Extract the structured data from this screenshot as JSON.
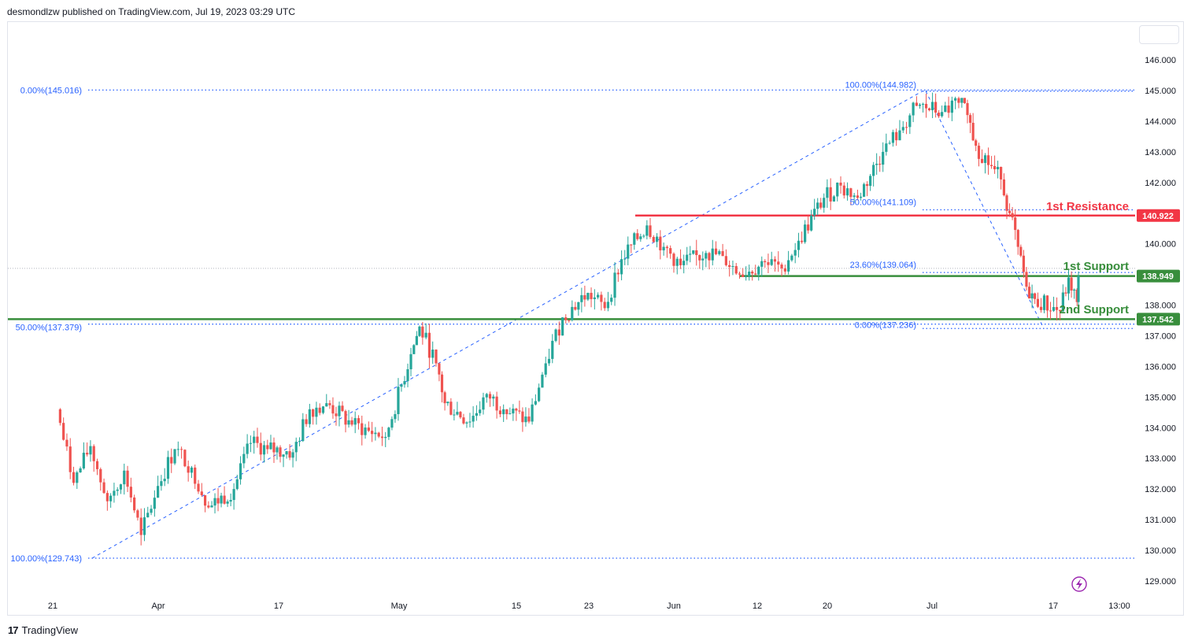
{
  "header": {
    "publisher_line": "desmondlzw published on TradingView.com, Jul 19, 2023 03:29 UTC"
  },
  "footer": {
    "brand": "TradingView",
    "brand_logo": "17"
  },
  "colors": {
    "bull": "#26a69a",
    "bear": "#ef5350",
    "fib": "#2962ff",
    "resistance": "#f23645",
    "support": "#388e3c",
    "lightning": "#9c27b0"
  },
  "icons": {
    "lightning": "lightning-icon",
    "logo": "tradingview-logo-icon"
  },
  "chart_data": {
    "type": "candlestick",
    "instrument": "",
    "price_axis": {
      "ticks": [
        "146.000",
        "145.000",
        "144.000",
        "143.000",
        "142.000",
        "141.000",
        "140.000",
        "139.000",
        "138.000",
        "137.000",
        "136.000",
        "135.000",
        "134.000",
        "133.000",
        "132.000",
        "131.000",
        "130.000",
        "129.000"
      ],
      "range": [
        128.6,
        146.9
      ]
    },
    "time_axis": {
      "ticks": [
        "21",
        "Apr",
        "17",
        "May",
        "15",
        "23",
        "Jun",
        "12",
        "20",
        "Jul",
        "17",
        "13:00"
      ]
    },
    "candles_ohlc_approx": [
      {
        "date": "2023-03-20",
        "o": 134.6,
        "h": 134.9,
        "l": 131.5,
        "c": 132.2
      },
      {
        "date": "2023-03-22",
        "o": 132.2,
        "h": 133.9,
        "l": 131.3,
        "c": 133.5
      },
      {
        "date": "2023-03-24",
        "o": 133.4,
        "h": 133.7,
        "l": 130.9,
        "c": 131.6
      },
      {
        "date": "2023-03-26",
        "o": 131.6,
        "h": 133.1,
        "l": 130.3,
        "c": 132.7
      },
      {
        "date": "2023-03-28",
        "o": 132.6,
        "h": 132.8,
        "l": 129.9,
        "c": 130.5
      },
      {
        "date": "2023-03-30",
        "o": 130.5,
        "h": 132.7,
        "l": 130.3,
        "c": 132.2
      },
      {
        "date": "2023-04-01",
        "o": 132.1,
        "h": 133.8,
        "l": 131.3,
        "c": 133.3
      },
      {
        "date": "2023-04-03",
        "o": 133.3,
        "h": 133.9,
        "l": 132.4,
        "c": 132.7
      },
      {
        "date": "2023-04-05",
        "o": 132.7,
        "h": 133.6,
        "l": 130.8,
        "c": 131.3
      },
      {
        "date": "2023-04-07",
        "o": 131.4,
        "h": 132.4,
        "l": 130.9,
        "c": 132.0
      },
      {
        "date": "2023-04-10",
        "o": 132.0,
        "h": 133.8,
        "l": 131.9,
        "c": 133.5
      },
      {
        "date": "2023-04-12",
        "o": 133.5,
        "h": 134.0,
        "l": 132.6,
        "c": 133.4
      },
      {
        "date": "2023-04-14",
        "o": 133.3,
        "h": 133.9,
        "l": 132.1,
        "c": 133.2
      },
      {
        "date": "2023-04-17",
        "o": 133.2,
        "h": 134.7,
        "l": 132.9,
        "c": 134.5
      },
      {
        "date": "2023-04-19",
        "o": 134.6,
        "h": 135.1,
        "l": 134.3,
        "c": 134.8
      },
      {
        "date": "2023-04-21",
        "o": 134.8,
        "h": 135.1,
        "l": 134.1,
        "c": 134.1
      },
      {
        "date": "2023-04-24",
        "o": 134.1,
        "h": 134.6,
        "l": 133.4,
        "c": 133.9
      },
      {
        "date": "2023-04-26",
        "o": 133.9,
        "h": 134.1,
        "l": 133.0,
        "c": 133.7
      },
      {
        "date": "2023-04-28",
        "o": 133.7,
        "h": 136.7,
        "l": 133.6,
        "c": 136.4
      },
      {
        "date": "2023-05-01",
        "o": 136.4,
        "h": 137.8,
        "l": 136.2,
        "c": 137.4
      },
      {
        "date": "2023-05-02",
        "o": 137.3,
        "h": 137.6,
        "l": 135.7,
        "c": 136.2
      },
      {
        "date": "2023-05-04",
        "o": 136.1,
        "h": 136.3,
        "l": 134.6,
        "c": 134.8
      },
      {
        "date": "2023-05-05",
        "o": 134.8,
        "h": 135.1,
        "l": 133.5,
        "c": 134.1
      },
      {
        "date": "2023-05-08",
        "o": 134.2,
        "h": 135.3,
        "l": 134.0,
        "c": 135.1
      },
      {
        "date": "2023-05-10",
        "o": 135.1,
        "h": 135.4,
        "l": 134.2,
        "c": 134.6
      },
      {
        "date": "2023-05-12",
        "o": 134.6,
        "h": 135.2,
        "l": 133.8,
        "c": 134.2
      },
      {
        "date": "2023-05-15",
        "o": 134.2,
        "h": 136.3,
        "l": 134.1,
        "c": 136.1
      },
      {
        "date": "2023-05-17",
        "o": 136.1,
        "h": 137.7,
        "l": 136.0,
        "c": 137.6
      },
      {
        "date": "2023-05-19",
        "o": 137.6,
        "h": 138.8,
        "l": 137.4,
        "c": 138.4
      },
      {
        "date": "2023-05-22",
        "o": 138.4,
        "h": 138.9,
        "l": 137.5,
        "c": 137.9
      },
      {
        "date": "2023-05-24",
        "o": 137.9,
        "h": 139.7,
        "l": 137.8,
        "c": 139.5
      },
      {
        "date": "2023-05-26",
        "o": 139.5,
        "h": 140.9,
        "l": 139.3,
        "c": 140.6
      },
      {
        "date": "2023-05-29",
        "o": 140.6,
        "h": 140.9,
        "l": 139.6,
        "c": 139.9
      },
      {
        "date": "2023-05-31",
        "o": 139.9,
        "h": 140.2,
        "l": 138.9,
        "c": 139.3
      },
      {
        "date": "2023-06-02",
        "o": 139.3,
        "h": 139.9,
        "l": 138.4,
        "c": 139.7
      },
      {
        "date": "2023-06-05",
        "o": 139.7,
        "h": 140.3,
        "l": 139.0,
        "c": 139.6
      },
      {
        "date": "2023-06-07",
        "o": 139.6,
        "h": 140.1,
        "l": 138.8,
        "c": 139.0
      },
      {
        "date": "2023-06-09",
        "o": 139.0,
        "h": 139.6,
        "l": 138.8,
        "c": 139.4
      },
      {
        "date": "2023-06-12",
        "o": 139.4,
        "h": 139.8,
        "l": 138.9,
        "c": 139.2
      },
      {
        "date": "2023-06-14",
        "o": 139.2,
        "h": 140.3,
        "l": 139.0,
        "c": 140.1
      },
      {
        "date": "2023-06-16",
        "o": 140.1,
        "h": 141.6,
        "l": 140.0,
        "c": 141.5
      },
      {
        "date": "2023-06-19",
        "o": 141.5,
        "h": 142.2,
        "l": 141.1,
        "c": 141.9
      },
      {
        "date": "2023-06-21",
        "o": 141.9,
        "h": 142.2,
        "l": 141.2,
        "c": 141.5
      },
      {
        "date": "2023-06-23",
        "o": 141.5,
        "h": 143.1,
        "l": 141.4,
        "c": 143.0
      },
      {
        "date": "2023-06-26",
        "o": 143.0,
        "h": 143.9,
        "l": 142.7,
        "c": 143.7
      },
      {
        "date": "2023-06-28",
        "o": 143.7,
        "h": 144.7,
        "l": 143.5,
        "c": 144.5
      },
      {
        "date": "2023-06-30",
        "o": 144.5,
        "h": 144.98,
        "l": 144.2,
        "c": 144.3
      },
      {
        "date": "2023-07-03",
        "o": 144.3,
        "h": 144.8,
        "l": 144.1,
        "c": 144.6
      },
      {
        "date": "2023-07-05",
        "o": 144.6,
        "h": 144.7,
        "l": 144.0,
        "c": 144.2
      },
      {
        "date": "2023-07-06",
        "o": 144.2,
        "h": 144.3,
        "l": 143.0,
        "c": 143.2
      },
      {
        "date": "2023-07-07",
        "o": 143.2,
        "h": 143.3,
        "l": 141.8,
        "c": 142.1
      },
      {
        "date": "2023-07-10",
        "o": 142.1,
        "h": 142.3,
        "l": 140.6,
        "c": 141.0
      },
      {
        "date": "2023-07-11",
        "o": 141.0,
        "h": 141.2,
        "l": 139.6,
        "c": 139.9
      },
      {
        "date": "2023-07-12",
        "o": 139.9,
        "h": 140.1,
        "l": 138.3,
        "c": 138.6
      },
      {
        "date": "2023-07-13",
        "o": 138.6,
        "h": 138.9,
        "l": 137.9,
        "c": 138.2
      },
      {
        "date": "2023-07-14",
        "o": 138.2,
        "h": 138.4,
        "l": 137.24,
        "c": 137.8
      },
      {
        "date": "2023-07-17",
        "o": 137.8,
        "h": 139.2,
        "l": 137.6,
        "c": 138.9
      },
      {
        "date": "2023-07-18",
        "o": 138.9,
        "h": 139.1,
        "l": 137.9,
        "c": 138.1
      },
      {
        "date": "2023-07-19",
        "o": 138.1,
        "h": 139.1,
        "l": 138.0,
        "c": 138.95
      }
    ],
    "fib_labels": [
      {
        "text": "0.00%(145.016)",
        "price": 145.016
      },
      {
        "text": "50.00%(137.379)",
        "price": 137.379
      },
      {
        "text": "100.00%(129.743)",
        "price": 129.743
      },
      {
        "text": "100.00%(144.982)",
        "price": 144.982
      },
      {
        "text": "50.00%(141.109)",
        "price": 141.109
      },
      {
        "text": "23.60%(139.064)",
        "price": 139.064
      },
      {
        "text": "0.00%(137.236)",
        "price": 137.236
      }
    ],
    "levels": [
      {
        "label": "1st Resistance",
        "price": 140.922,
        "price_text": "140.922",
        "color": "#f23645"
      },
      {
        "label": "1st Support",
        "price": 138.949,
        "price_text": "138.949",
        "color": "#388e3c"
      },
      {
        "label": "2nd Support",
        "price": 137.542,
        "price_text": "137.542",
        "color": "#388e3c"
      }
    ],
    "current_price": 138.949,
    "grid": false
  }
}
